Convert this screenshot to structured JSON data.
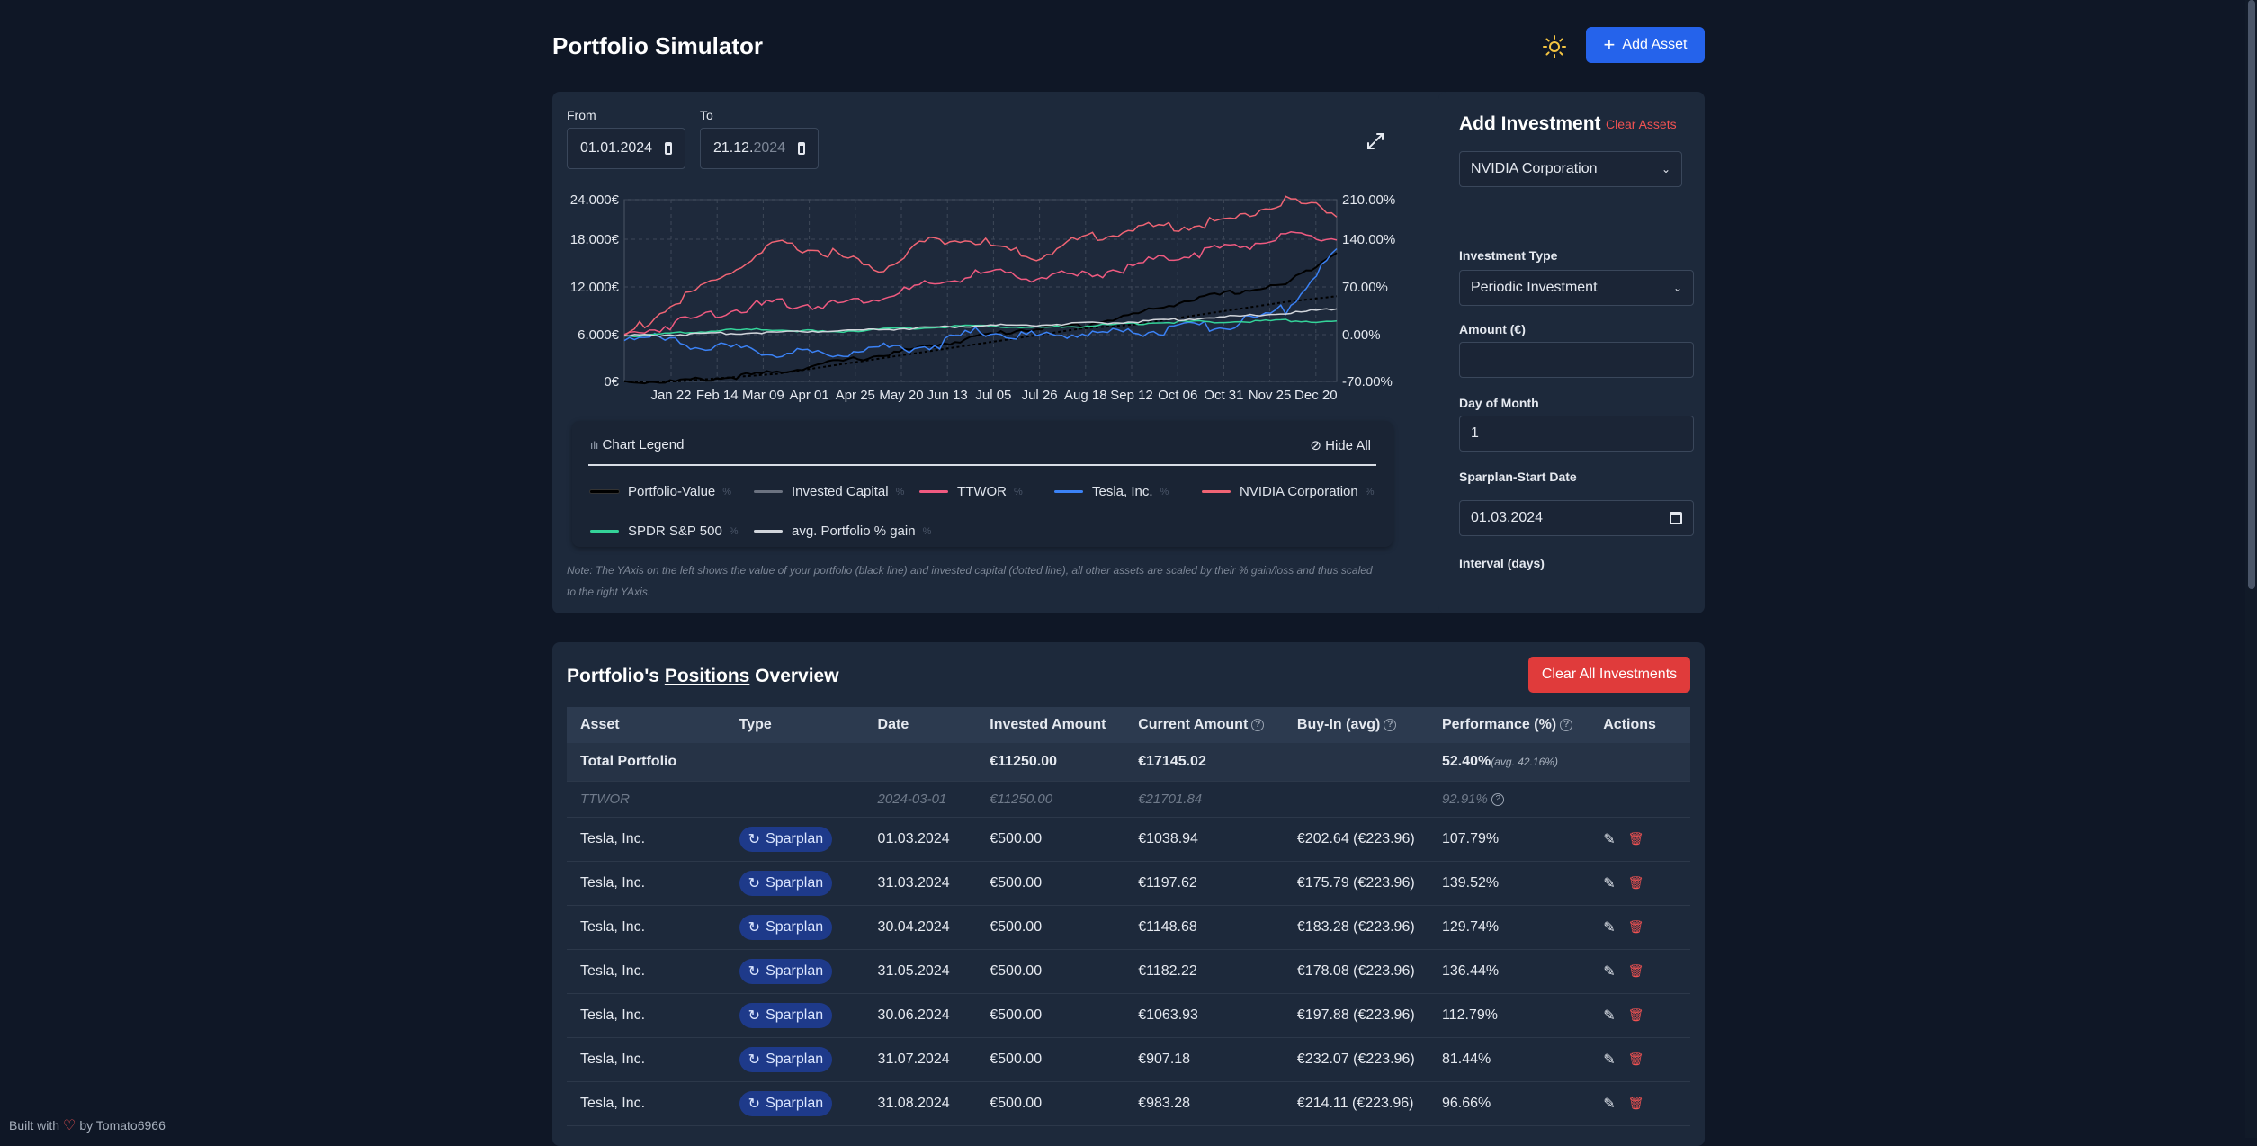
{
  "app": {
    "title": "Portfolio Simulator",
    "add_asset": "Add Asset"
  },
  "colors": {
    "portfolio": "#000000",
    "invested": "#6b7280",
    "ttwor": "#f05a80",
    "tesla": "#3b82f6",
    "nvidia": "#f06474",
    "spdr": "#34d399",
    "avg": "#d1d5db",
    "accent": "#2563eb",
    "danger": "#e03b3b"
  },
  "dates": {
    "from_label": "From",
    "from_value": "01.01.2024",
    "to_label": "To",
    "to_value_main": "21.12.",
    "to_value_dim": "2024"
  },
  "chart_data": {
    "type": "line",
    "x": [
      "Jan 22",
      "Feb 14",
      "Mar 09",
      "Apr 01",
      "Apr 25",
      "May 20",
      "Jun 13",
      "Jul 05",
      "Jul 26",
      "Aug 18",
      "Sep 12",
      "Oct 06",
      "Oct 31",
      "Nov 25",
      "Dec 20"
    ],
    "left_ticks": [
      "24.000€",
      "18.000€",
      "12.000€",
      "6.000€",
      "0€"
    ],
    "right_ticks": [
      "210.00%",
      "140.00%",
      "70.00%",
      "0.00%",
      "-70.00%"
    ],
    "left_ylim": [
      0,
      24000
    ],
    "right_ylim": [
      -70,
      210
    ],
    "series": [
      {
        "name": "Portfolio-Value",
        "axis": "left",
        "values": [
          0,
          0,
          500,
          1200,
          2400,
          3400,
          4600,
          6000,
          7000,
          7400,
          8800,
          10600,
          11800,
          12800,
          17200
        ]
      },
      {
        "name": "Invested Capital",
        "axis": "left",
        "values": [
          0,
          0,
          500,
          1000,
          2000,
          3000,
          4000,
          5000,
          6000,
          7000,
          7500,
          8500,
          9500,
          10500,
          11250
        ]
      },
      {
        "name": "TTWOR",
        "axis": "right",
        "values": [
          0,
          20,
          40,
          50,
          48,
          60,
          78,
          96,
          92,
          92,
          108,
          126,
          138,
          152,
          150
        ]
      },
      {
        "name": "Tesla, Inc.",
        "axis": "right",
        "values": [
          0,
          -8,
          -20,
          -26,
          -28,
          -18,
          -16,
          8,
          0,
          4,
          6,
          12,
          18,
          42,
          130
        ]
      },
      {
        "name": "NVIDIA Corporation",
        "axis": "right",
        "values": [
          0,
          50,
          95,
          140,
          130,
          100,
          150,
          145,
          120,
          150,
          165,
          170,
          180,
          210,
          190
        ]
      },
      {
        "name": "SPDR S&P 500",
        "axis": "right",
        "values": [
          0,
          4,
          9,
          10,
          6,
          10,
          13,
          16,
          13,
          15,
          19,
          22,
          22,
          24,
          22
        ]
      },
      {
        "name": "avg. Portfolio % gain",
        "axis": "right",
        "values": [
          0,
          2,
          4,
          6,
          8,
          10,
          13,
          16,
          17,
          19,
          22,
          26,
          30,
          35,
          42
        ]
      }
    ]
  },
  "legend": {
    "title": "Chart Legend",
    "hide_all": "Hide All",
    "items": [
      "Portfolio-Value",
      "Invested Capital",
      "TTWOR",
      "Tesla, Inc.",
      "NVIDIA Corporation",
      "SPDR S&P 500",
      "avg. Portfolio % gain"
    ],
    "pct": "%"
  },
  "note": "Note: The YAxis on the left shows the value of your portfolio (black line) and invested capital (dotted line), all other assets are scaled by their % gain/loss and thus scaled to the right YAxis.",
  "add_investment": {
    "title": "Add Investment",
    "clear_assets": "Clear Assets",
    "asset": "NVIDIA Corporation",
    "type_label": "Investment Type",
    "type_value": "Periodic Investment",
    "amount_label": "Amount (€)",
    "amount_value": "",
    "day_label": "Day of Month",
    "day_value": "1",
    "start_label": "Sparplan-Start Date",
    "start_value": "01.03.2024",
    "interval_label": "Interval (days)"
  },
  "positions": {
    "title_a": "Portfolio's ",
    "title_b": "Positions",
    "title_c": " Overview",
    "clear_all": "Clear All Investments",
    "headers": [
      "Asset",
      "Type",
      "Date",
      "Invested Amount",
      "Current Amount",
      "Buy-In (avg)",
      "Performance (%)",
      "Actions"
    ],
    "total": {
      "asset": "Total Portfolio",
      "invested": "€11250.00",
      "current": "€17145.02",
      "perf": "52.40%",
      "perf_avg": "(avg. 42.16%)"
    },
    "ttwor": {
      "asset": "TTWOR",
      "date": "2024-03-01",
      "invested": "€11250.00",
      "current": "€21701.84",
      "perf": "92.91%"
    },
    "badge": "Sparplan",
    "rows": [
      {
        "asset": "Tesla, Inc.",
        "date": "01.03.2024",
        "invested": "€500.00",
        "current": "€1038.94",
        "buyin": "€202.64 (€223.96)",
        "perf": "107.79%"
      },
      {
        "asset": "Tesla, Inc.",
        "date": "31.03.2024",
        "invested": "€500.00",
        "current": "€1197.62",
        "buyin": "€175.79 (€223.96)",
        "perf": "139.52%"
      },
      {
        "asset": "Tesla, Inc.",
        "date": "30.04.2024",
        "invested": "€500.00",
        "current": "€1148.68",
        "buyin": "€183.28 (€223.96)",
        "perf": "129.74%"
      },
      {
        "asset": "Tesla, Inc.",
        "date": "31.05.2024",
        "invested": "€500.00",
        "current": "€1182.22",
        "buyin": "€178.08 (€223.96)",
        "perf": "136.44%"
      },
      {
        "asset": "Tesla, Inc.",
        "date": "30.06.2024",
        "invested": "€500.00",
        "current": "€1063.93",
        "buyin": "€197.88 (€223.96)",
        "perf": "112.79%"
      },
      {
        "asset": "Tesla, Inc.",
        "date": "31.07.2024",
        "invested": "€500.00",
        "current": "€907.18",
        "buyin": "€232.07 (€223.96)",
        "perf": "81.44%"
      },
      {
        "asset": "Tesla, Inc.",
        "date": "31.08.2024",
        "invested": "€500.00",
        "current": "€983.28",
        "buyin": "€214.11 (€223.96)",
        "perf": "96.66%"
      }
    ]
  },
  "footer": {
    "built": "Built with",
    "by": "by Tomato6966"
  }
}
